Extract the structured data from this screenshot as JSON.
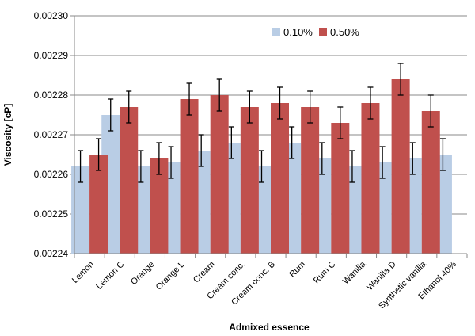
{
  "chart_data": {
    "type": "bar",
    "xlabel": "Admixed essence",
    "ylabel": "Viscosity [cP]",
    "ylim": [
      0.00224,
      0.0023
    ],
    "yticks": [
      "0.00224",
      "0.00225",
      "0.00226",
      "0.00227",
      "0.00228",
      "0.00229",
      "0.00230"
    ],
    "grid": true,
    "legend_position": "top-right",
    "error_bars": true,
    "categories": [
      "Lemon",
      "Lemon C",
      "Orange",
      "Orange L",
      "Cream",
      "Cream conc.",
      "Cream conc. B",
      "Rum",
      "Rum C",
      "Wanilla",
      "Wanilla D",
      "Synthetic vanilla",
      "Ethanol 40%"
    ],
    "series": [
      {
        "name": "0.10%",
        "color": "#b9cde5",
        "values": [
          0.002262,
          0.002275,
          0.002262,
          0.002263,
          0.002266,
          0.002268,
          0.002262,
          0.002268,
          0.002264,
          0.002262,
          0.002263,
          0.002264,
          0.002265
        ],
        "errors": [
          4e-06,
          4e-06,
          4e-06,
          4e-06,
          4e-06,
          4e-06,
          4e-06,
          4e-06,
          4e-06,
          4e-06,
          4e-06,
          4e-06,
          4e-06
        ]
      },
      {
        "name": "0.50%",
        "color": "#c0504d",
        "values": [
          0.002265,
          0.002277,
          0.002264,
          0.002279,
          0.00228,
          0.002277,
          0.002278,
          0.002277,
          0.002273,
          0.002278,
          0.002284,
          0.002276,
          null
        ],
        "errors": [
          4e-06,
          4e-06,
          4e-06,
          4e-06,
          4e-06,
          4e-06,
          4e-06,
          4e-06,
          4e-06,
          4e-06,
          4e-06,
          4e-06,
          null
        ]
      }
    ]
  }
}
